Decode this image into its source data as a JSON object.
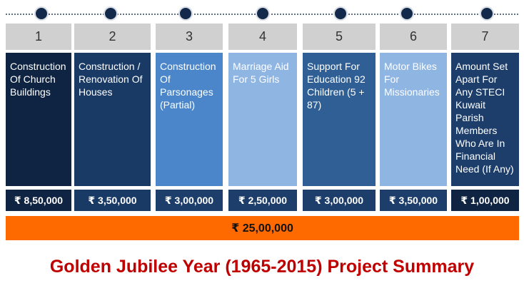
{
  "title": "Golden Jubilee Year (1965-2015) Project Summary",
  "total": "₹ 25,00,000",
  "colors": {
    "timeline_dot": "#13294b",
    "number_box": "#d0d0d0",
    "total_bar": "#ff6a00",
    "title": "#c00000"
  },
  "projects": [
    {
      "number": "1",
      "description": "Construction Of Church Buildings",
      "amount": "₹ 8,50,000",
      "color": "#0f2442",
      "amount_color": "#0f2442"
    },
    {
      "number": "2",
      "description": "Construction / Renovation Of Houses",
      "amount": "₹ 3,50,000",
      "color": "#1a3a66",
      "amount_color": "#1a3a66"
    },
    {
      "number": "3",
      "description": "Construction Of Parsonages (Partial)",
      "amount": "₹ 3,00,000",
      "color": "#4a86c9",
      "amount_color": "#1d3e6a"
    },
    {
      "number": "4",
      "description": "Marriage Aid For 5 Girls",
      "amount": "₹ 2,50,000",
      "color": "#8fb5e3",
      "amount_color": "#1d3e6a"
    },
    {
      "number": "5",
      "description": "Support For Education 92 Children (5 + 87)",
      "amount": "₹ 3,00,000",
      "color": "#2f5f94",
      "amount_color": "#1d3e6a"
    },
    {
      "number": "6",
      "description": "Motor Bikes For Missionaries",
      "amount": "₹ 3,50,000",
      "color": "#8fb5e3",
      "amount_color": "#1d3e6a"
    },
    {
      "number": "7",
      "description": "Amount Set Apart For Any STECI Kuwait Parish Members Who Are In Financial Need (If Any)",
      "amount": "₹ 1,00,000",
      "color": "#1d3e6a",
      "amount_color": "#0f2442"
    }
  ]
}
